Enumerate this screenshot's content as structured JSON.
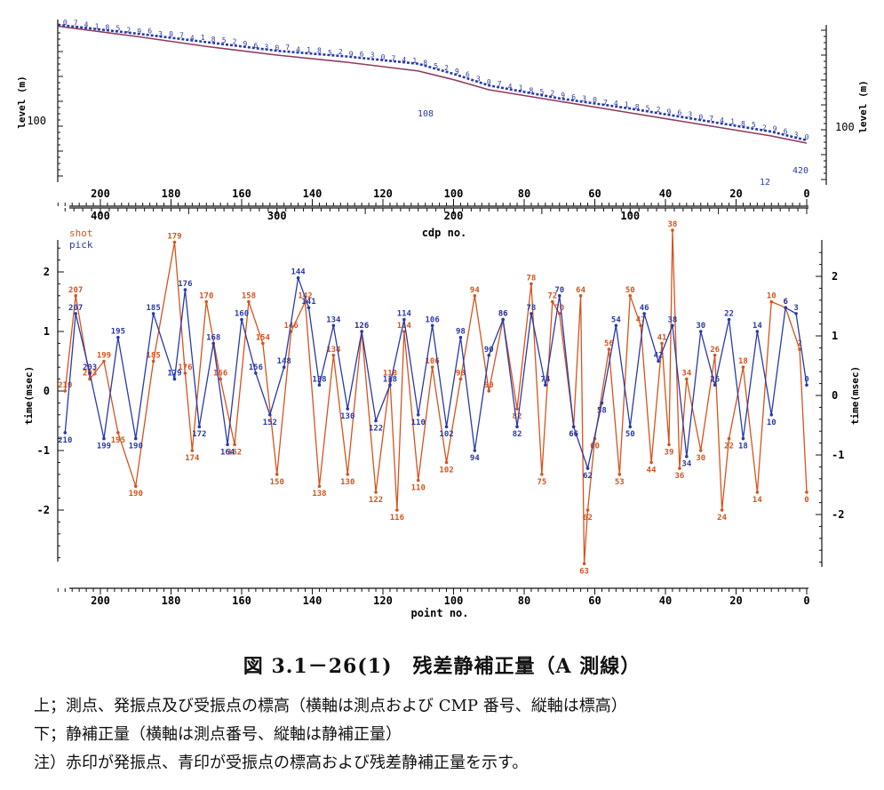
{
  "colors": {
    "shot": "#d4541e",
    "pick": "#2a3aa8",
    "axis": "#111111",
    "level_line": "#8e3a5e"
  },
  "top_chart": {
    "ylabel_left": "level (m)",
    "ylabel_right": "level (m)",
    "y_tick_left": "100",
    "y_tick_right": "100",
    "point_axis_labels": [
      "200",
      "180",
      "160",
      "140",
      "120",
      "100",
      "80",
      "60",
      "40",
      "20",
      "0"
    ],
    "cdp_axis_labels": [
      "400",
      "300",
      "200",
      "100"
    ],
    "xlabel": "cdp no.",
    "inline_labels": [
      "108",
      "12",
      "420"
    ]
  },
  "bottom_chart": {
    "legend_shot": "shot",
    "legend_pick": "pick",
    "ylabel_left": "time(msec)",
    "ylabel_right": "time(msec)",
    "y_ticks_left": [
      "2",
      "1",
      "0",
      "-1",
      "-2"
    ],
    "y_ticks_right": [
      "2",
      "1",
      "0",
      "-1",
      "-2"
    ],
    "x_axis_labels": [
      "200",
      "180",
      "160",
      "140",
      "120",
      "100",
      "80",
      "60",
      "40",
      "20",
      "0"
    ],
    "xlabel": "point no."
  },
  "chart_data": [
    {
      "type": "line",
      "title": "",
      "xlabel": "cdp no.",
      "ylabel": "level (m)",
      "x_reversed": true,
      "x": [
        212,
        190,
        170,
        150,
        130,
        110,
        100,
        90,
        70,
        50,
        30,
        10,
        0
      ],
      "series": [
        {
          "name": "",
          "color": "blue",
          "values": [
            134.5,
            131.5,
            128.5,
            125.5,
            123.5,
            121.0,
            117.5,
            113.5,
            109.0,
            105.5,
            101.5,
            97.5,
            94.5
          ]
        },
        {
          "name": "",
          "color": "purple",
          "values": [
            134.0,
            130.5,
            127.0,
            124.0,
            121.5,
            118.5,
            115.5,
            112.0,
            108.0,
            104.0,
            100.0,
            96.0,
            93.5
          ]
        }
      ]
    },
    {
      "type": "line",
      "title": "",
      "xlabel": "point no.",
      "ylabel": "time(msec)",
      "x_reversed": true,
      "ylim": [
        -2.9,
        2.5
      ],
      "series": [
        {
          "name": "shot",
          "color": "orange",
          "x": [
            210,
            207,
            203,
            199,
            195,
            190,
            185,
            179,
            176,
            174,
            170,
            166,
            162,
            158,
            154,
            150,
            146,
            142,
            138,
            134,
            130,
            126,
            122,
            118,
            116,
            114,
            110,
            106,
            102,
            98,
            94,
            90,
            86,
            82,
            78,
            75,
            72,
            70,
            66,
            64,
            63,
            62,
            60,
            56,
            53,
            50,
            47,
            44,
            41,
            39,
            38,
            36,
            34,
            30,
            26,
            24,
            22,
            18,
            14,
            10,
            6,
            2,
            0
          ],
          "values": [
            0.0,
            1.6,
            0.2,
            0.5,
            -0.7,
            -1.6,
            0.5,
            2.5,
            0.3,
            -1.0,
            1.5,
            0.2,
            -0.9,
            1.5,
            0.8,
            -1.4,
            1.0,
            1.5,
            -1.6,
            0.6,
            -1.4,
            1.0,
            -1.7,
            0.2,
            -2.0,
            1.0,
            -1.5,
            0.4,
            -1.2,
            0.2,
            1.6,
            0.0,
            1.2,
            -0.3,
            1.8,
            -1.4,
            1.5,
            1.3,
            -0.6,
            1.6,
            -2.9,
            -2.0,
            -0.8,
            0.7,
            -1.4,
            1.6,
            1.1,
            -1.2,
            0.8,
            -0.9,
            2.7,
            -1.3,
            0.2,
            -1.0,
            0.6,
            -2.0,
            -0.8,
            0.4,
            -1.7,
            1.5,
            1.4,
            0.7,
            -1.7
          ]
        },
        {
          "name": "pick",
          "color": "blue",
          "x": [
            210,
            207,
            203,
            199,
            195,
            190,
            185,
            179,
            176,
            172,
            168,
            164,
            160,
            156,
            152,
            148,
            144,
            141,
            138,
            134,
            130,
            126,
            122,
            118,
            114,
            110,
            106,
            102,
            98,
            94,
            90,
            86,
            82,
            78,
            74,
            70,
            66,
            62,
            58,
            54,
            50,
            46,
            42,
            38,
            34,
            30,
            26,
            22,
            18,
            14,
            10,
            6,
            3,
            0
          ],
          "values": [
            -0.7,
            1.3,
            0.3,
            -0.8,
            0.9,
            -0.8,
            1.3,
            0.2,
            1.7,
            -0.6,
            0.8,
            -0.9,
            1.2,
            0.3,
            -0.4,
            0.4,
            1.9,
            1.4,
            0.1,
            1.1,
            -0.3,
            1.0,
            -0.5,
            0.1,
            1.2,
            -0.4,
            1.1,
            -0.6,
            0.9,
            -1.0,
            0.6,
            1.2,
            -0.6,
            1.3,
            0.1,
            1.6,
            -0.6,
            -1.3,
            -0.2,
            1.1,
            -0.6,
            1.3,
            0.5,
            1.1,
            -1.1,
            1.0,
            0.1,
            1.2,
            -0.8,
            1.0,
            -0.4,
            1.4,
            1.3,
            0.1
          ]
        }
      ]
    }
  ],
  "caption": {
    "title": "図 3.1－26(1)　残差静補正量（A 測線）",
    "line1": "上；測点、発振点及び受振点の標高（横軸は測点および CMP 番号、縦軸は標高）",
    "line2": "下；静補正量（横軸は測点番号、縦軸は静補正量）",
    "line3": "注）赤印が発振点、青印が受振点の標高および残差静補正量を示す。"
  }
}
